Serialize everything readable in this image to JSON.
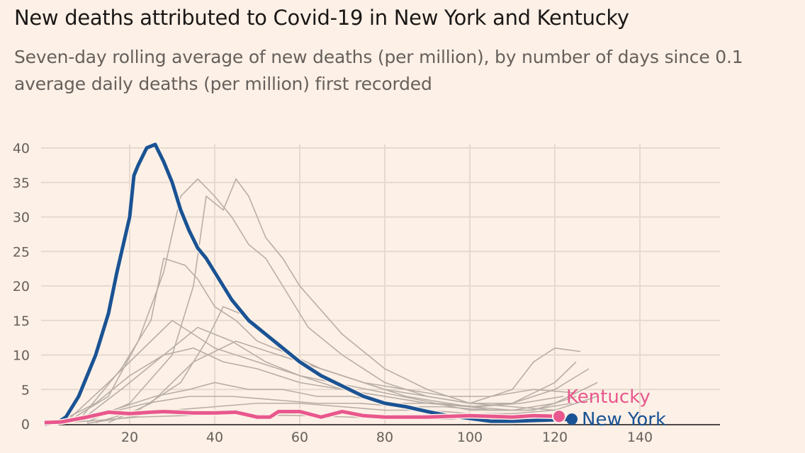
{
  "header": {
    "title": "New deaths attributed to Covid-19 in New York and Kentucky",
    "subtitle": "Seven-day rolling average of new deaths (per million), by number of days since 0.1 average daily deaths (per million) first recorded"
  },
  "chart_data": {
    "type": "line",
    "title": "New deaths attributed to Covid-19 in New York and Kentucky",
    "xlabel": "Days since 0.1 average daily deaths (per million) first recorded",
    "ylabel": "Seven-day rolling average of new deaths (per million)",
    "xlim": [
      0,
      160
    ],
    "ylim": [
      0,
      41
    ],
    "xticks": [
      20,
      40,
      60,
      80,
      100,
      120,
      140
    ],
    "yticks": [
      0,
      5,
      10,
      15,
      20,
      25,
      30,
      35,
      40
    ],
    "grid": true,
    "colors": {
      "new_york": "#1a5394",
      "kentucky": "#e8578d",
      "other": "#b7aea7",
      "background": "#fdf0e6"
    },
    "series": [
      {
        "name": "New York",
        "label": "New York",
        "highlight": true,
        "x": [
          0,
          3,
          5,
          8,
          10,
          12,
          15,
          17,
          20,
          21,
          22,
          24,
          26,
          28,
          30,
          32,
          34,
          36,
          38,
          40,
          42,
          44,
          46,
          48,
          50,
          55,
          60,
          65,
          70,
          75,
          80,
          85,
          90,
          95,
          100,
          105,
          110,
          115,
          120,
          124
        ],
        "y": [
          0,
          0.2,
          1,
          4,
          7,
          10,
          16,
          22,
          30,
          36,
          37.5,
          40,
          40.5,
          38,
          35,
          31,
          28,
          25.5,
          24,
          22,
          20,
          18,
          16.5,
          15,
          14,
          11.5,
          9,
          7,
          5.5,
          4,
          3,
          2.5,
          1.8,
          1.2,
          0.8,
          0.4,
          0.4,
          0.5,
          0.6,
          0.7
        ]
      },
      {
        "name": "Kentucky",
        "label": "Kentucky",
        "highlight": true,
        "x": [
          0,
          4,
          10,
          15,
          20,
          25,
          28,
          35,
          40,
          45,
          50,
          53,
          55,
          60,
          65,
          70,
          75,
          80,
          90,
          100,
          110,
          115,
          121
        ],
        "y": [
          0.2,
          0.3,
          1,
          1.7,
          1.5,
          1.7,
          1.8,
          1.6,
          1.6,
          1.7,
          1,
          1,
          1.8,
          1.8,
          1,
          1.8,
          1.2,
          1,
          1,
          1.2,
          1,
          1.2,
          1.1
        ]
      },
      {
        "name": "",
        "x": [
          5,
          15,
          22,
          28,
          32,
          36,
          40,
          44,
          48,
          52,
          56,
          62,
          70,
          80,
          90,
          100,
          110,
          120
        ],
        "y": [
          0.2,
          4,
          12,
          22,
          33,
          35.5,
          33,
          30,
          26,
          24,
          20,
          14,
          10,
          6,
          4,
          3,
          2.5,
          2
        ]
      },
      {
        "name": "",
        "x": [
          10,
          20,
          30,
          35,
          38,
          42,
          45,
          48,
          52,
          56,
          60,
          70,
          80,
          90,
          100,
          110,
          120,
          128
        ],
        "y": [
          0.3,
          3,
          10,
          20,
          33,
          31,
          35.5,
          33,
          27,
          24,
          20,
          13,
          8,
          5,
          3,
          3,
          5,
          8
        ]
      },
      {
        "name": "",
        "x": [
          8,
          18,
          25,
          28,
          33,
          36,
          40,
          45,
          50,
          58,
          65,
          75,
          85,
          95,
          105,
          115,
          125
        ],
        "y": [
          0.5,
          8,
          15,
          24,
          23,
          21,
          17,
          15,
          12,
          10,
          8,
          6,
          4,
          3,
          2,
          2,
          4
        ]
      },
      {
        "name": "",
        "x": [
          5,
          15,
          25,
          30,
          35,
          40,
          45,
          50,
          55,
          60,
          70,
          80,
          90,
          100,
          110,
          120,
          130
        ],
        "y": [
          0.3,
          6,
          12,
          15,
          13,
          11,
          10,
          9,
          8,
          7,
          5,
          4,
          3,
          2.5,
          2,
          3,
          6
        ]
      },
      {
        "name": "",
        "x": [
          12,
          22,
          32,
          38,
          42,
          46,
          50,
          55,
          60,
          70,
          80,
          90,
          100,
          110,
          115,
          120,
          126
        ],
        "y": [
          0.2,
          2,
          6,
          12,
          17,
          16,
          14,
          11,
          9,
          7,
          5,
          4,
          3,
          5,
          9,
          11,
          10.5
        ]
      },
      {
        "name": "",
        "x": [
          3,
          12,
          20,
          28,
          35,
          42,
          50,
          60,
          70,
          80,
          90,
          100,
          110,
          120,
          125
        ],
        "y": [
          0.2,
          3,
          7,
          10,
          11,
          9,
          8,
          6,
          5,
          4,
          3,
          2.5,
          3,
          6,
          9
        ]
      },
      {
        "name": "",
        "x": [
          6,
          16,
          26,
          34,
          40,
          48,
          56,
          64,
          72,
          82,
          92,
          102,
          112,
          122
        ],
        "y": [
          0.4,
          2,
          4,
          5,
          6,
          5,
          5,
          4,
          4,
          3,
          3,
          2.5,
          3,
          4
        ]
      },
      {
        "name": "",
        "x": [
          4,
          14,
          24,
          34,
          44,
          54,
          64,
          74,
          84,
          94,
          104,
          114,
          124
        ],
        "y": [
          0.2,
          1.5,
          3,
          4,
          4,
          3.5,
          3,
          3,
          2.5,
          2.5,
          2,
          2,
          3
        ]
      },
      {
        "name": "",
        "x": [
          10,
          20,
          30,
          40,
          50,
          60,
          70,
          80,
          90,
          100,
          110,
          120,
          130
        ],
        "y": [
          0.1,
          1,
          2,
          2.5,
          3,
          3,
          2.5,
          2,
          2,
          1.5,
          1.5,
          2,
          4
        ]
      },
      {
        "name": "",
        "x": [
          2,
          12,
          22,
          32,
          42,
          52,
          62,
          72,
          82,
          92,
          102,
          112
        ],
        "y": [
          0.1,
          0.5,
          1,
          1.2,
          1.5,
          1.3,
          1.2,
          1,
          0.8,
          0.7,
          0.7,
          0.9
        ]
      },
      {
        "name": "",
        "x": [
          15,
          25,
          35,
          45,
          55,
          65,
          75,
          85,
          95,
          105,
          115,
          125
        ],
        "y": [
          0.2,
          3,
          9,
          12,
          10,
          8,
          6,
          5,
          4,
          4,
          5,
          4.5
        ]
      },
      {
        "name": "",
        "x": [
          8,
          18,
          28,
          36,
          44,
          52,
          60,
          68,
          76,
          84,
          92,
          100,
          108
        ],
        "y": [
          0.3,
          5,
          10,
          14,
          12,
          9,
          7,
          6,
          5,
          4,
          3,
          2,
          2
        ]
      }
    ]
  }
}
